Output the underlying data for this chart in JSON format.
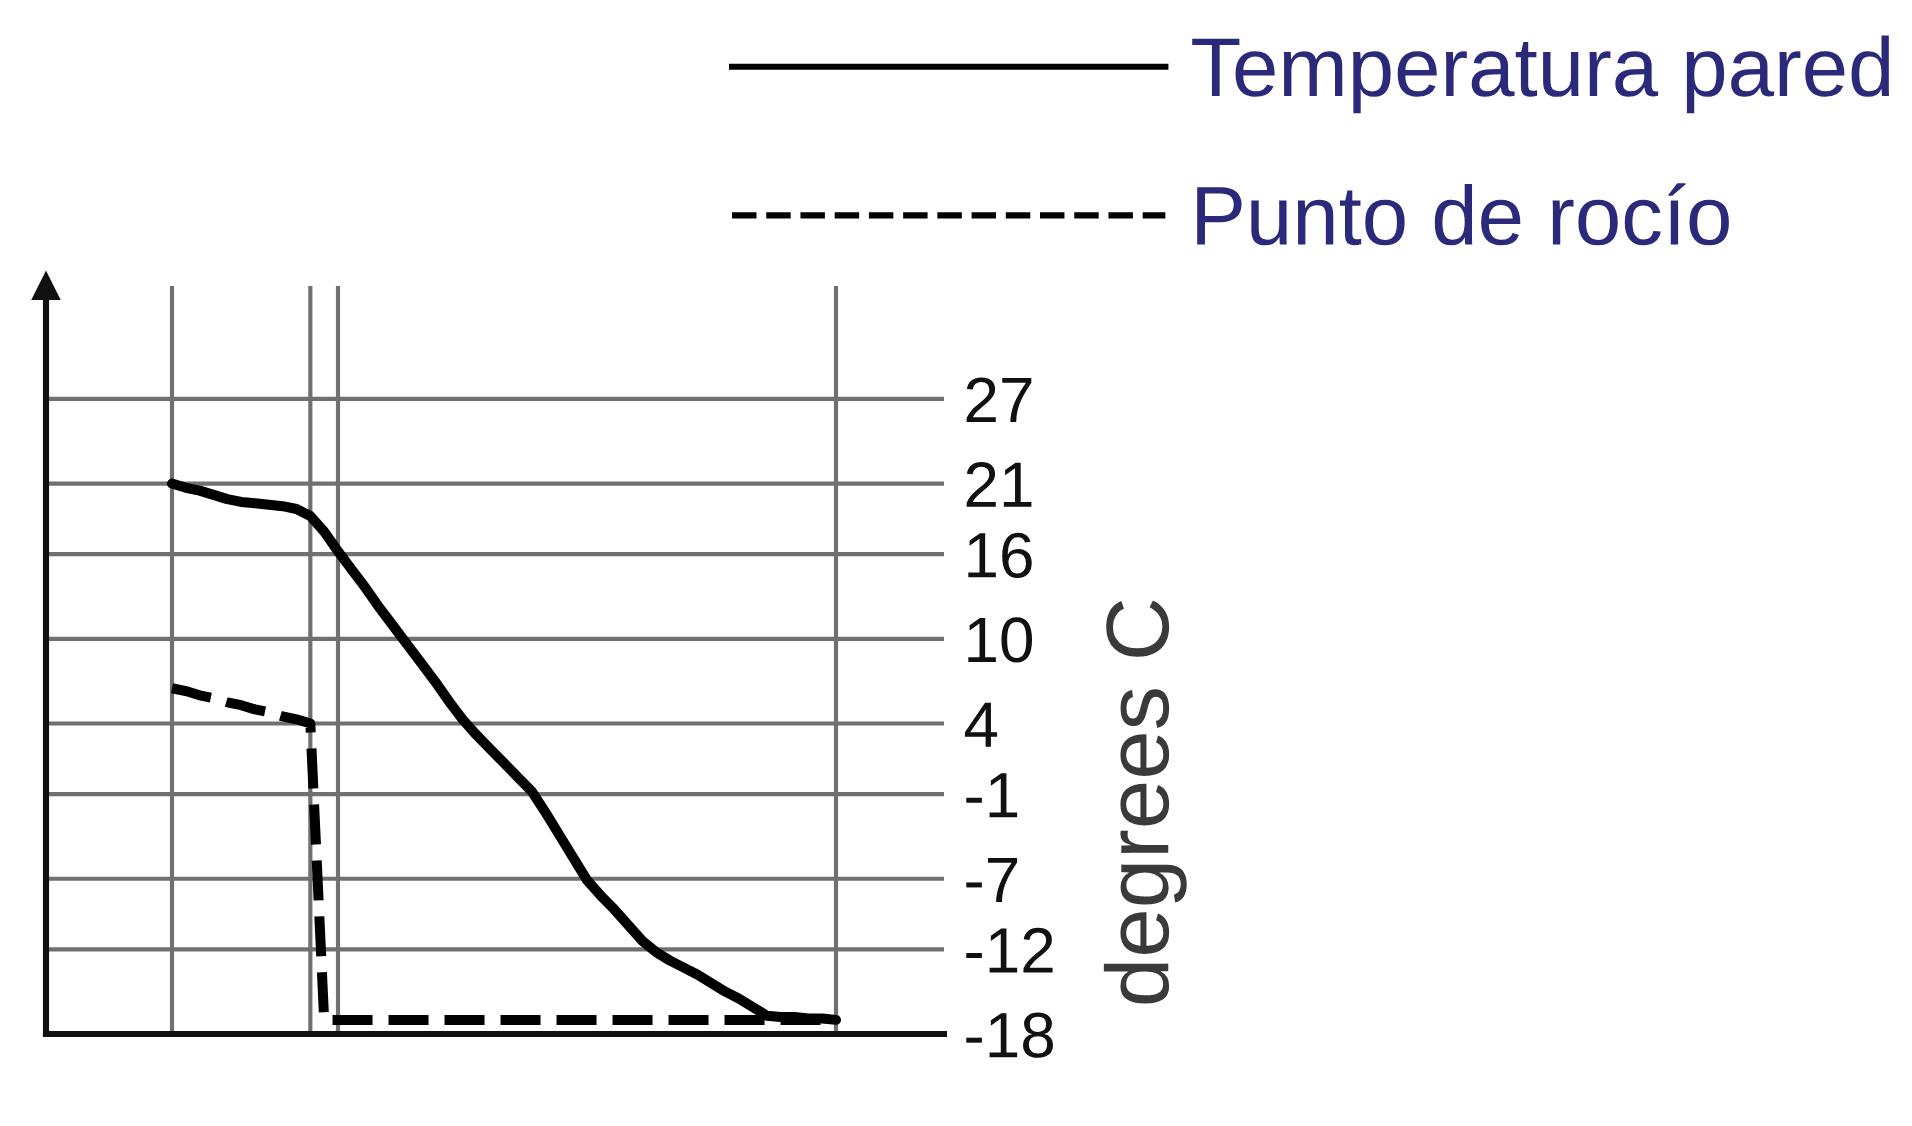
{
  "chart_data": {
    "type": "line",
    "ylabel": "degrees C",
    "legend": "top right",
    "grid": true,
    "tick_labels": "y",
    "marker": "none",
    "categories": [
      null,
      null,
      null,
      null,
      null,
      null,
      null,
      null,
      null,
      null,
      null,
      null,
      null,
      null,
      null,
      null,
      null,
      null,
      null,
      null,
      null,
      null,
      null,
      null,
      null,
      null,
      null,
      null,
      null,
      null,
      null,
      null,
      null,
      null,
      null,
      null,
      null,
      null,
      null,
      null,
      null,
      null,
      null,
      null,
      null,
      null,
      null,
      null,
      null
    ],
    "ylim": [
      -18,
      35
    ],
    "yticks": [
      -18,
      -12,
      -7,
      -1,
      4,
      10,
      16,
      21,
      27
    ],
    "series": [
      {
        "name": "Temperatura pared",
        "color": "#000000",
        "line_style": "solid",
        "values": [
          21,
          20.7,
          20.5,
          20.2,
          19.9,
          19.7,
          19.6,
          19.5,
          19.4,
          19.2,
          18.7,
          17.6,
          16.2,
          14.9,
          13.6,
          12.2,
          10.9,
          9.6,
          8.3,
          7,
          5.6,
          4.3,
          3.2,
          2.2,
          1.2,
          0.2,
          -0.8,
          -2.3,
          -3.9,
          -5.5,
          -7.1,
          -8.2,
          -9.2,
          -10.3,
          -11.4,
          -12.2,
          -12.8,
          -13.3,
          -13.8,
          -14.4,
          -15,
          -15.5,
          -16.1,
          -16.7,
          -16.8,
          -16.8,
          -16.9,
          -16.9,
          -17
        ]
      },
      {
        "name": "Punto de rocío",
        "color": "#000000",
        "line_style": "dashed",
        "values": [
          6.5,
          6.3,
          6,
          5.8,
          5.5,
          5.3,
          5,
          4.8,
          4.5,
          4.3,
          4,
          -17,
          -17,
          -17,
          -17,
          -17,
          -17,
          -17,
          -17,
          -17,
          -17,
          -17,
          -17,
          -17,
          -17,
          -17,
          -17,
          -17,
          -17,
          -17,
          -17,
          -17,
          -17,
          -17,
          -17,
          -17,
          -17,
          -17,
          -17,
          -17,
          -17,
          -17,
          -17,
          -17,
          -17,
          -17,
          -17,
          -17,
          -17
        ]
      }
    ]
  }
}
